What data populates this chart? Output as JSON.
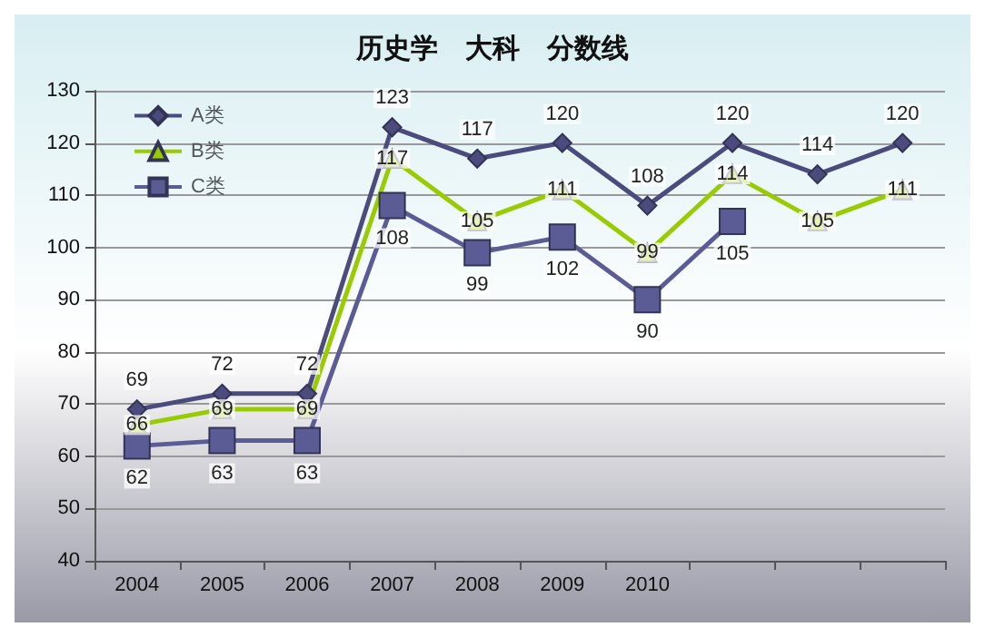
{
  "chart_data": {
    "type": "line",
    "title": "历史学　大科　分数线",
    "categories": [
      "2004",
      "2005",
      "2006",
      "2007",
      "2008",
      "2009",
      "2010",
      null,
      null,
      null
    ],
    "series": [
      {
        "name": "A类",
        "color": "#4b4b7d",
        "marker": "diamond",
        "values": [
          69,
          72,
          72,
          123,
          117,
          120,
          108,
          120,
          114,
          120
        ]
      },
      {
        "name": "B类",
        "color": "#99cc00",
        "marker": "triangle",
        "values": [
          66,
          69,
          69,
          117,
          105,
          111,
          99,
          114,
          105,
          111
        ]
      },
      {
        "name": "C类",
        "color": "#5b5b96",
        "marker": "square",
        "values": [
          62,
          63,
          63,
          108,
          99,
          102,
          90,
          105,
          null,
          null
        ]
      }
    ],
    "ylim": [
      40,
      130
    ],
    "yticks": [
      40,
      50,
      60,
      70,
      80,
      90,
      100,
      110,
      120,
      130
    ],
    "grid": "y",
    "legend": "top left",
    "data_labels": true,
    "line_style": "solid"
  }
}
